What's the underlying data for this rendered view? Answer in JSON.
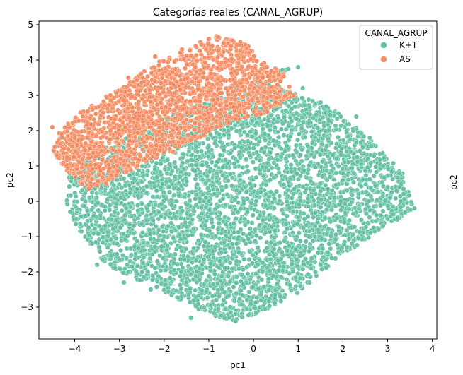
{
  "chart_data": {
    "type": "scatter",
    "title": "Categorías reales (CANAL_AGRUP)",
    "xlabel": "pc1",
    "ylabel": "pc2",
    "xlim": [
      -4.8,
      4.1
    ],
    "ylim": [
      -3.9,
      5.1
    ],
    "xticks": [
      -4,
      -3,
      -2,
      -1,
      0,
      1,
      2,
      3,
      4
    ],
    "yticks": [
      -3,
      -2,
      -1,
      0,
      1,
      2,
      3,
      4,
      5
    ],
    "legend": {
      "title": "CANAL_AGRUP",
      "placement": "top-right",
      "entries": [
        "K+T",
        "AS"
      ]
    },
    "grid": false,
    "series": [
      {
        "name": "K+T",
        "color": "#66c2a5",
        "cluster": {
          "center": [
            0.2,
            0.0
          ],
          "extent_x": [
            -4.2,
            3.6
          ],
          "extent_y": [
            -3.4,
            3.9
          ],
          "outline": [
            [
              -4.2,
              -0.3
            ],
            [
              -3.3,
              -1.8
            ],
            [
              -2.3,
              -2.4
            ],
            [
              -1.2,
              -3.1
            ],
            [
              -0.5,
              -3.4
            ],
            [
              0.3,
              -3.1
            ],
            [
              1.0,
              -2.6
            ],
            [
              2.0,
              -1.5
            ],
            [
              3.0,
              -0.7
            ],
            [
              3.6,
              -0.2
            ],
            [
              3.3,
              0.9
            ],
            [
              2.5,
              1.9
            ],
            [
              1.8,
              2.6
            ],
            [
              1.0,
              3.0
            ],
            [
              0.4,
              3.4
            ],
            [
              0.9,
              3.8
            ],
            [
              0.2,
              3.6
            ],
            [
              -0.6,
              3.1
            ],
            [
              -1.6,
              2.6
            ],
            [
              -2.6,
              2.0
            ],
            [
              -3.5,
              1.4
            ],
            [
              -4.1,
              1.0
            ]
          ],
          "sample_points": [
            [
              -4.1,
              -0.3
            ],
            [
              -3.5,
              -1.8
            ],
            [
              -2.9,
              -2.3
            ],
            [
              -2.3,
              -2.5
            ],
            [
              -1.5,
              -2.3
            ],
            [
              -1.4,
              -3.3
            ],
            [
              -0.4,
              -3.4
            ],
            [
              0.6,
              -2.7
            ],
            [
              1.5,
              -1.8
            ],
            [
              2.1,
              -1.3
            ],
            [
              3.0,
              -0.5
            ],
            [
              3.6,
              -0.2
            ],
            [
              3.3,
              0.5
            ],
            [
              2.9,
              1.0
            ],
            [
              2.6,
              1.8
            ],
            [
              2.3,
              2.4
            ],
            [
              1.5,
              2.8
            ],
            [
              1.1,
              3.2
            ],
            [
              0.5,
              3.6
            ],
            [
              1.0,
              3.8
            ],
            [
              0.0,
              3.3
            ],
            [
              -0.8,
              2.9
            ],
            [
              -1.8,
              2.4
            ],
            [
              -2.8,
              1.6
            ],
            [
              -3.8,
              1.0
            ],
            [
              -1.0,
              0.0
            ],
            [
              0.5,
              -0.5
            ],
            [
              1.5,
              0.5
            ],
            [
              -2.0,
              -1.0
            ],
            [
              0.0,
              1.5
            ]
          ]
        }
      },
      {
        "name": "AS",
        "color": "#fc8d62",
        "cluster": {
          "center": [
            -2.0,
            2.4
          ],
          "extent_x": [
            -4.5,
            0.9
          ],
          "extent_y": [
            0.3,
            4.7
          ],
          "outline": [
            [
              -4.5,
              1.4
            ],
            [
              -4.3,
              2.1
            ],
            [
              -3.8,
              2.6
            ],
            [
              -3.0,
              3.2
            ],
            [
              -2.2,
              3.9
            ],
            [
              -1.5,
              4.3
            ],
            [
              -0.9,
              4.7
            ],
            [
              -0.2,
              4.5
            ],
            [
              0.2,
              4.0
            ],
            [
              0.7,
              3.6
            ],
            [
              0.9,
              3.0
            ],
            [
              0.3,
              2.5
            ],
            [
              -0.6,
              2.2
            ],
            [
              -1.5,
              1.6
            ],
            [
              -2.4,
              1.1
            ],
            [
              -3.2,
              0.6
            ],
            [
              -3.7,
              0.3
            ],
            [
              -4.2,
              0.9
            ]
          ],
          "sample_points": [
            [
              -4.5,
              2.1
            ],
            [
              -4.4,
              1.3
            ],
            [
              -4.0,
              1.8
            ],
            [
              -3.6,
              2.6
            ],
            [
              -3.2,
              3.0
            ],
            [
              -2.8,
              3.5
            ],
            [
              -2.2,
              4.1
            ],
            [
              -1.6,
              4.3
            ],
            [
              -1.0,
              4.6
            ],
            [
              -0.5,
              4.4
            ],
            [
              -0.1,
              4.2
            ],
            [
              0.3,
              3.8
            ],
            [
              0.6,
              3.4
            ],
            [
              0.9,
              3.0
            ],
            [
              -2.8,
              1.0
            ],
            [
              -3.3,
              0.5
            ],
            [
              -2.0,
              2.2
            ],
            [
              -1.2,
              3.0
            ],
            [
              -3.0,
              1.9
            ],
            [
              -1.8,
              1.4
            ]
          ]
        }
      }
    ]
  }
}
